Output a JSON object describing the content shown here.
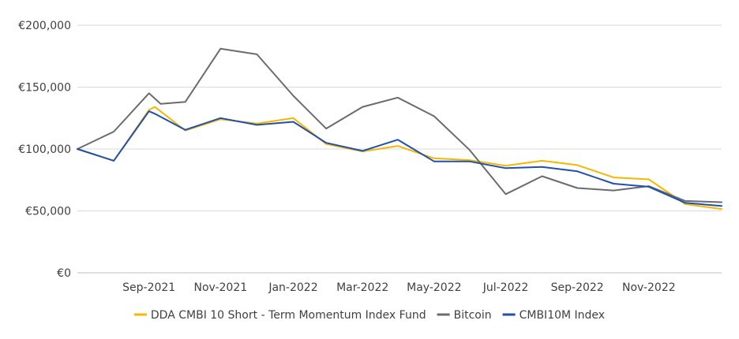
{
  "chart_data": {
    "type": "line",
    "title": "",
    "xlabel": "",
    "ylabel": "",
    "ylim": [
      0,
      200000
    ],
    "yticks": [
      0,
      50000,
      100000,
      150000,
      200000
    ],
    "ytick_labels": [
      "€0",
      "€50,000",
      "€100,000",
      "€150,000",
      "€200,000"
    ],
    "xlim": [
      "2021-07-31",
      "2023-01-31"
    ],
    "xticks": [
      "2021-09-30",
      "2021-11-30",
      "2022-01-31",
      "2022-03-31",
      "2022-05-31",
      "2022-07-31",
      "2022-09-30",
      "2022-11-30"
    ],
    "xtick_labels": [
      "Sep-2021",
      "Nov-2021",
      "Jan-2022",
      "Mar-2022",
      "May-2022",
      "Jul-2022",
      "Sep-2022",
      "Nov-2022"
    ],
    "grid": true,
    "legend_position": "bottom",
    "series": [
      {
        "name": "DDA CMBI 10 Short - Term Momentum Index Fund",
        "color": "#F5B800",
        "points": [
          [
            "2021-07-31",
            100000
          ],
          [
            "2021-08-31",
            90500
          ],
          [
            "2021-09-30",
            131500
          ],
          [
            "2021-10-05",
            134000
          ],
          [
            "2021-10-31",
            115000
          ],
          [
            "2021-11-30",
            124000
          ],
          [
            "2021-12-31",
            120500
          ],
          [
            "2022-01-31",
            125000
          ],
          [
            "2022-02-28",
            104000
          ],
          [
            "2022-03-31",
            98000
          ],
          [
            "2022-04-30",
            102500
          ],
          [
            "2022-05-31",
            92500
          ],
          [
            "2022-06-30",
            91000
          ],
          [
            "2022-07-31",
            86500
          ],
          [
            "2022-08-31",
            90500
          ],
          [
            "2022-09-30",
            87000
          ],
          [
            "2022-10-31",
            77000
          ],
          [
            "2022-11-30",
            75500
          ],
          [
            "2022-12-31",
            55500
          ],
          [
            "2023-01-31",
            51500
          ]
        ]
      },
      {
        "name": "Bitcoin",
        "color": "#6B6B6B",
        "points": [
          [
            "2021-07-31",
            100000
          ],
          [
            "2021-08-31",
            114000
          ],
          [
            "2021-09-30",
            145000
          ],
          [
            "2021-10-10",
            136500
          ],
          [
            "2021-10-31",
            138000
          ],
          [
            "2021-11-30",
            181000
          ],
          [
            "2021-12-31",
            176500
          ],
          [
            "2022-01-31",
            143000
          ],
          [
            "2022-02-28",
            116500
          ],
          [
            "2022-03-31",
            134000
          ],
          [
            "2022-04-30",
            141500
          ],
          [
            "2022-05-31",
            126500
          ],
          [
            "2022-06-30",
            99500
          ],
          [
            "2022-07-31",
            63500
          ],
          [
            "2022-08-31",
            78000
          ],
          [
            "2022-09-30",
            68500
          ],
          [
            "2022-10-31",
            66500
          ],
          [
            "2022-11-30",
            70000
          ],
          [
            "2022-12-31",
            58000
          ],
          [
            "2023-01-31",
            57000
          ]
        ]
      },
      {
        "name": "CMBI10M Index",
        "color": "#1F4FB0",
        "points": [
          [
            "2021-07-31",
            100000
          ],
          [
            "2021-08-31",
            90500
          ],
          [
            "2021-09-30",
            130500
          ],
          [
            "2021-10-05",
            128500
          ],
          [
            "2021-10-31",
            115500
          ],
          [
            "2021-11-30",
            125000
          ],
          [
            "2021-12-31",
            119500
          ],
          [
            "2022-01-31",
            122000
          ],
          [
            "2022-02-28",
            105000
          ],
          [
            "2022-03-31",
            98500
          ],
          [
            "2022-04-30",
            107500
          ],
          [
            "2022-05-31",
            90000
          ],
          [
            "2022-06-30",
            90000
          ],
          [
            "2022-07-31",
            84500
          ],
          [
            "2022-08-31",
            85500
          ],
          [
            "2022-09-30",
            82000
          ],
          [
            "2022-10-31",
            72000
          ],
          [
            "2022-11-30",
            69500
          ],
          [
            "2022-12-31",
            56500
          ],
          [
            "2023-01-31",
            54000
          ]
        ]
      }
    ]
  }
}
